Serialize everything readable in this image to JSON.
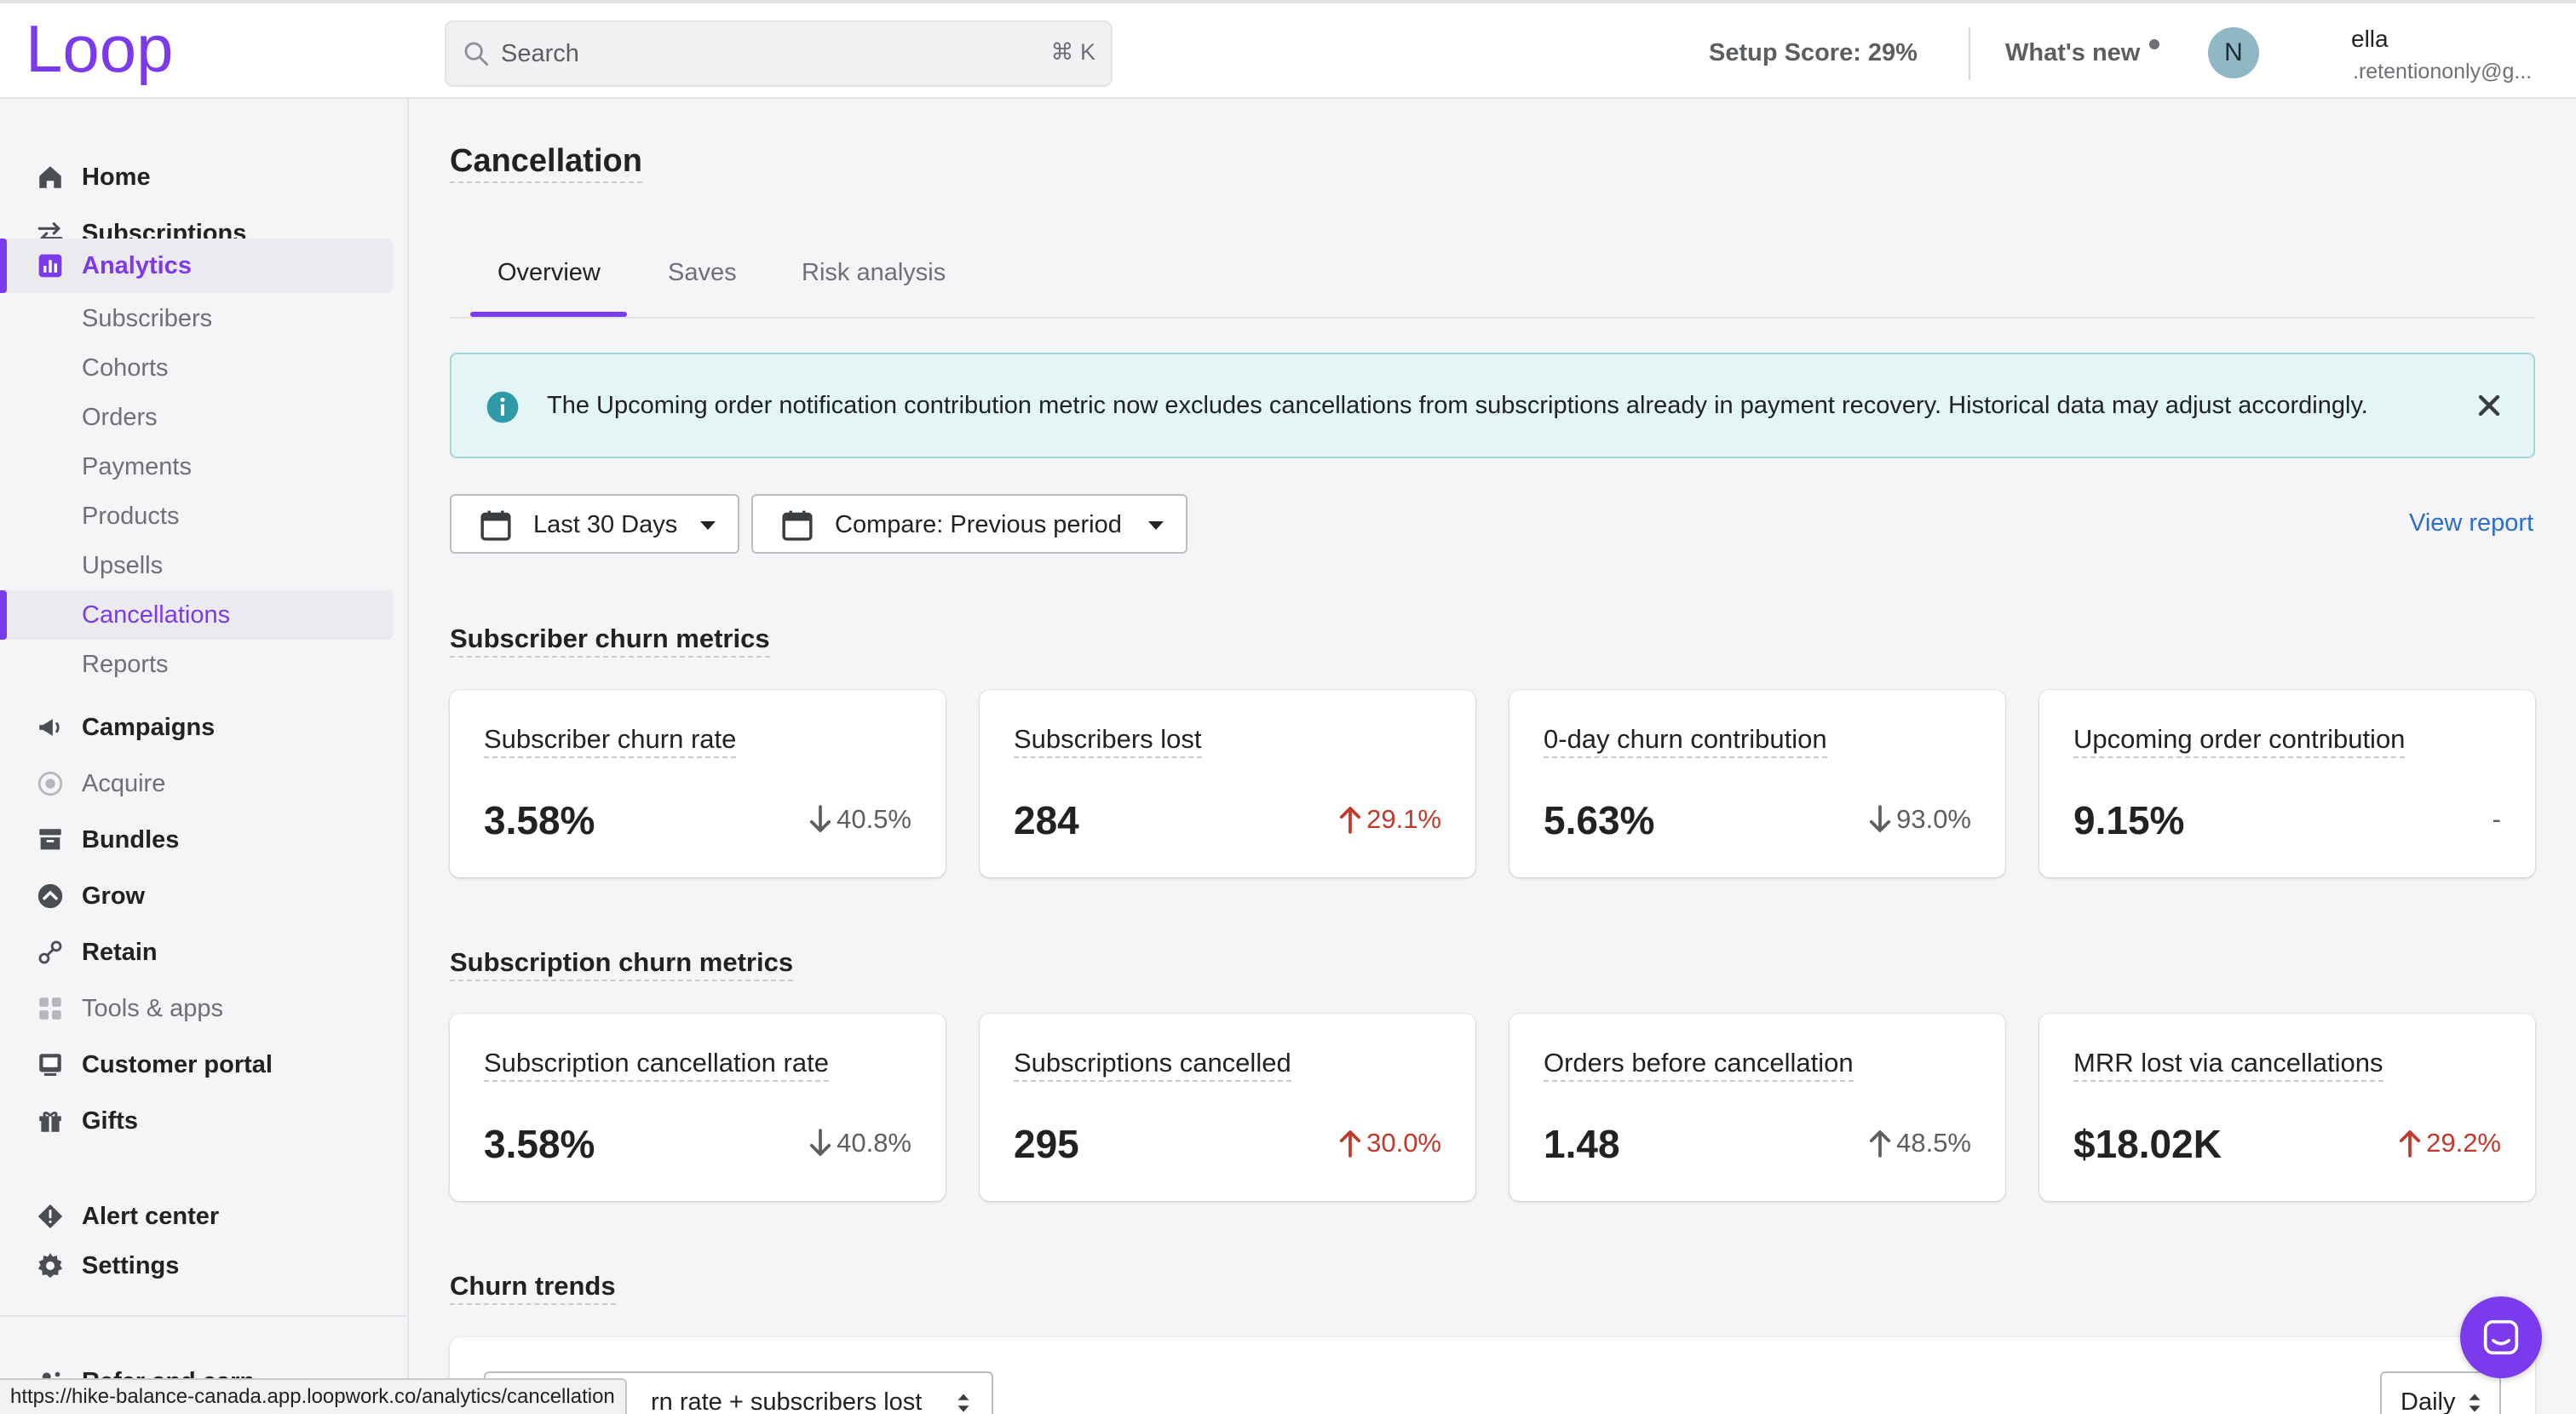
{
  "topbar": {
    "logo_text": "Loop",
    "search": {
      "placeholder": "Search",
      "shortcut": "⌘ K"
    },
    "setup_score": "Setup Score: 29%",
    "whats_new": "What's new",
    "user": {
      "initial": "N",
      "name": "ella",
      "email": ".retentiononly@g..."
    }
  },
  "sidebar": {
    "items": [
      {
        "label": "Home",
        "icon": "home-icon"
      },
      {
        "label": "Subscriptions",
        "icon": "arrows-swap-icon"
      },
      {
        "label": "Analytics",
        "icon": "bar-chart-icon",
        "active": true
      },
      {
        "label": "Campaigns",
        "icon": "megaphone-icon"
      },
      {
        "label": "Acquire",
        "icon": "target-icon",
        "muted": true
      },
      {
        "label": "Bundles",
        "icon": "archive-icon"
      },
      {
        "label": "Grow",
        "icon": "grow-icon"
      },
      {
        "label": "Retain",
        "icon": "retain-icon"
      },
      {
        "label": "Tools & apps",
        "icon": "grid-icon",
        "muted": true
      },
      {
        "label": "Customer portal",
        "icon": "portal-icon"
      },
      {
        "label": "Gifts",
        "icon": "gift-icon"
      },
      {
        "label": "Alert center",
        "icon": "alert-icon"
      },
      {
        "label": "Settings",
        "icon": "gear-icon"
      },
      {
        "label": "Refer and earn",
        "icon": "people-icon"
      }
    ],
    "analytics_sub": [
      {
        "label": "Subscribers"
      },
      {
        "label": "Cohorts"
      },
      {
        "label": "Orders"
      },
      {
        "label": "Payments"
      },
      {
        "label": "Products"
      },
      {
        "label": "Upsells"
      },
      {
        "label": "Cancellations",
        "active": true
      },
      {
        "label": "Reports"
      }
    ]
  },
  "main": {
    "title": "Cancellation",
    "tabs": [
      {
        "label": "Overview",
        "active": true
      },
      {
        "label": "Saves"
      },
      {
        "label": "Risk analysis"
      }
    ],
    "banner": "The Upcoming order notification contribution metric now excludes cancellations from subscriptions already in payment recovery. Historical data may adjust accordingly.",
    "filters": {
      "date_range": "Last 30 Days",
      "compare": "Compare: Previous period"
    },
    "view_report": "View report",
    "subscriber_section": "Subscriber churn metrics",
    "subscriber_cards": [
      {
        "title": "Subscriber churn rate",
        "value": "3.58%",
        "delta": "40.5%",
        "direction": "down",
        "color": "#5c5f62"
      },
      {
        "title": "Subscribers lost",
        "value": "284",
        "delta": "29.1%",
        "direction": "up",
        "color": "#c0392b"
      },
      {
        "title": "0-day churn contribution",
        "value": "5.63%",
        "delta": "93.0%",
        "direction": "down",
        "color": "#5c5f62"
      },
      {
        "title": "Upcoming order contribution",
        "value": "9.15%",
        "delta": "-",
        "direction": "none",
        "color": "#5c5f62"
      }
    ],
    "subscription_section": "Subscription churn metrics",
    "subscription_cards": [
      {
        "title": "Subscription cancellation rate",
        "value": "3.58%",
        "delta": "40.8%",
        "direction": "down",
        "color": "#5c5f62"
      },
      {
        "title": "Subscriptions cancelled",
        "value": "295",
        "delta": "30.0%",
        "direction": "up",
        "color": "#c0392b"
      },
      {
        "title": "Orders before cancellation",
        "value": "1.48",
        "delta": "48.5%",
        "direction": "up",
        "color": "#5c5f62"
      },
      {
        "title": "MRR lost via cancellations",
        "value": "$18.02K",
        "delta": "29.2%",
        "direction": "up",
        "color": "#c0392b"
      }
    ],
    "churn_section": "Churn trends",
    "trend_metric": "rn rate + subscribers lost",
    "trend_period": "Daily"
  },
  "status_url": "https://hike-balance-canada.app.loopwork.co/analytics/cancellation",
  "colors": {
    "accent": "#7c3aed",
    "link": "#2c6ecb",
    "negative": "#c0392b",
    "banner_bg": "#e4f5f5"
  }
}
